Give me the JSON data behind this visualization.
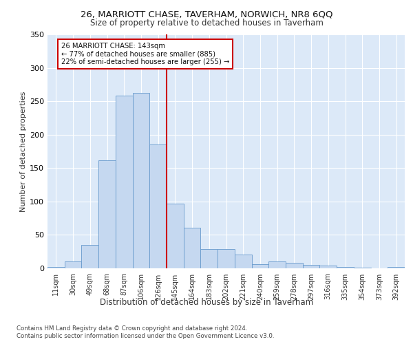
{
  "title1": "26, MARRIOTT CHASE, TAVERHAM, NORWICH, NR8 6QQ",
  "title2": "Size of property relative to detached houses in Taverham",
  "xlabel": "Distribution of detached houses by size in Taverham",
  "ylabel": "Number of detached properties",
  "bar_labels": [
    "11sqm",
    "30sqm",
    "49sqm",
    "68sqm",
    "87sqm",
    "106sqm",
    "126sqm",
    "145sqm",
    "164sqm",
    "183sqm",
    "202sqm",
    "221sqm",
    "240sqm",
    "259sqm",
    "278sqm",
    "297sqm",
    "316sqm",
    "335sqm",
    "354sqm",
    "373sqm",
    "392sqm"
  ],
  "bar_values": [
    2,
    10,
    35,
    162,
    258,
    262,
    185,
    97,
    61,
    29,
    29,
    21,
    6,
    10,
    8,
    5,
    4,
    2,
    1,
    0,
    2
  ],
  "bar_color": "#c5d8f0",
  "bar_edge_color": "#6699cc",
  "vline_color": "#cc0000",
  "annotation_title": "26 MARRIOTT CHASE: 143sqm",
  "annotation_line1": "← 77% of detached houses are smaller (885)",
  "annotation_line2": "22% of semi-detached houses are larger (255) →",
  "annotation_box_color": "#cc0000",
  "ylim": [
    0,
    350
  ],
  "yticks": [
    0,
    50,
    100,
    150,
    200,
    250,
    300,
    350
  ],
  "footnote1": "Contains HM Land Registry data © Crown copyright and database right 2024.",
  "footnote2": "Contains public sector information licensed under the Open Government Licence v3.0.",
  "plot_bg_color": "#dce9f8"
}
